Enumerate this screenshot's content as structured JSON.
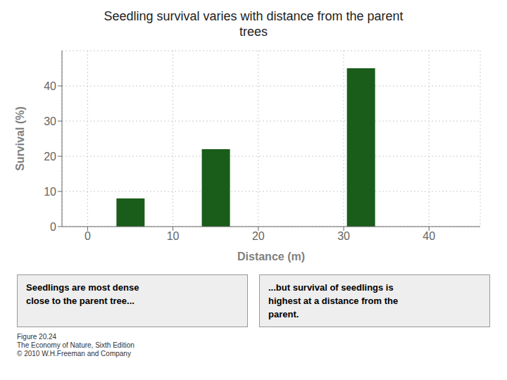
{
  "chart_data": {
    "type": "bar",
    "title": "Seedling survival varies with distance from the parent\ntrees",
    "x": [
      5,
      15,
      32
    ],
    "values": [
      8,
      22,
      45
    ],
    "color": "#1a5c1a",
    "xlabel": "Distance (m)",
    "ylabel": "Survival (%)",
    "xlim": [
      -3,
      46
    ],
    "xticks": [
      0,
      10,
      20,
      30,
      40
    ],
    "ylim": [
      0,
      50
    ],
    "yticks": [
      0,
      10,
      20,
      30,
      40
    ],
    "grid": true,
    "annotations": [
      "Seedlings are most dense\nclose to the parent tree...",
      "...but survival of seedlings is\nhighest at a distance from the\nparent.",
      "Figure 20.24\nThe Economy of Nature, Sixth Edition\n© 2010 W.H.Freeman and Company"
    ]
  }
}
